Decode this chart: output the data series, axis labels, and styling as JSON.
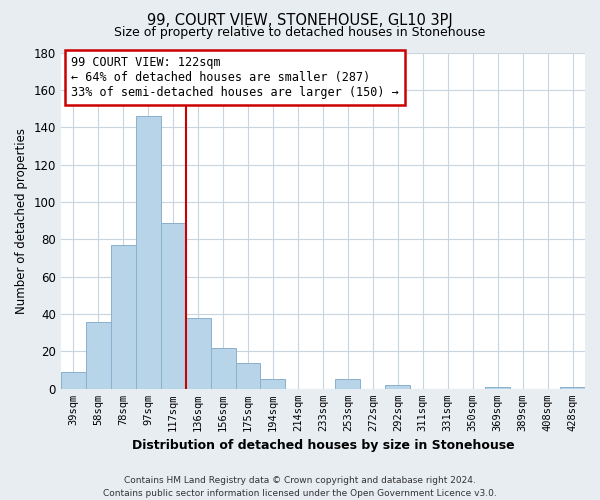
{
  "title": "99, COURT VIEW, STONEHOUSE, GL10 3PJ",
  "subtitle": "Size of property relative to detached houses in Stonehouse",
  "xlabel": "Distribution of detached houses by size in Stonehouse",
  "ylabel": "Number of detached properties",
  "bar_labels": [
    "39sqm",
    "58sqm",
    "78sqm",
    "97sqm",
    "117sqm",
    "136sqm",
    "156sqm",
    "175sqm",
    "194sqm",
    "214sqm",
    "233sqm",
    "253sqm",
    "272sqm",
    "292sqm",
    "311sqm",
    "331sqm",
    "350sqm",
    "369sqm",
    "389sqm",
    "408sqm",
    "428sqm"
  ],
  "bar_values": [
    9,
    36,
    77,
    146,
    89,
    38,
    22,
    14,
    5,
    0,
    0,
    5,
    0,
    2,
    0,
    0,
    0,
    1,
    0,
    0,
    1
  ],
  "bar_color": "#b8d4e8",
  "bar_edge_color": "#8ab0cc",
  "vline_x": 4.5,
  "vline_color": "#cc0000",
  "ylim": [
    0,
    180
  ],
  "yticks": [
    0,
    20,
    40,
    60,
    80,
    100,
    120,
    140,
    160,
    180
  ],
  "annotation_title": "99 COURT VIEW: 122sqm",
  "annotation_line1": "← 64% of detached houses are smaller (287)",
  "annotation_line2": "33% of semi-detached houses are larger (150) →",
  "annotation_box_color": "white",
  "annotation_box_edge": "#cc0000",
  "footer_line1": "Contains HM Land Registry data © Crown copyright and database right 2024.",
  "footer_line2": "Contains public sector information licensed under the Open Government Licence v3.0.",
  "background_color": "#e8edf2",
  "plot_bg_color": "white",
  "grid_color": "#c8d4de"
}
